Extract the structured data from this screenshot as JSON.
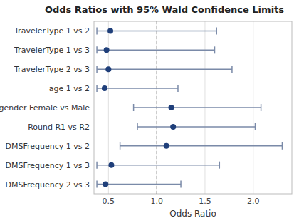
{
  "chart_data": {
    "type": "forest",
    "orientation": "horizontal",
    "title": "Odds Ratios with 95% Wald Confidence Limits",
    "x_label": "Odds Ratio",
    "categories": [
      "TravelerType 1 vs 2",
      "TravelerType 1 vs 3",
      "TravelerType 2 vs 3",
      "age 1 vs 2",
      "gender Female vs Male",
      "Round R1 vs R2",
      "DMSFrequency 1 vs 2",
      "DMSFrequency 1 vs 3",
      "DMSFrequency 2 vs 3"
    ],
    "values": [
      0.52,
      0.48,
      0.5,
      0.46,
      1.15,
      1.17,
      1.1,
      0.53,
      0.47
    ],
    "lower": [
      0.38,
      0.38,
      0.38,
      0.38,
      0.76,
      0.8,
      0.62,
      0.38,
      0.38
    ],
    "upper": [
      1.62,
      1.6,
      1.78,
      1.22,
      2.08,
      2.02,
      2.3,
      1.65,
      1.25
    ],
    "color": "#1f3f7a",
    "ref_line": 1.0,
    "xlim": [
      0.35,
      2.4
    ],
    "xticks": [
      0.5,
      {
        "value": 1.0,
        "label": "1.0"
      },
      1.5,
      {
        "value": 2.0,
        "label": "2.0"
      }
    ],
    "grid": true
  }
}
